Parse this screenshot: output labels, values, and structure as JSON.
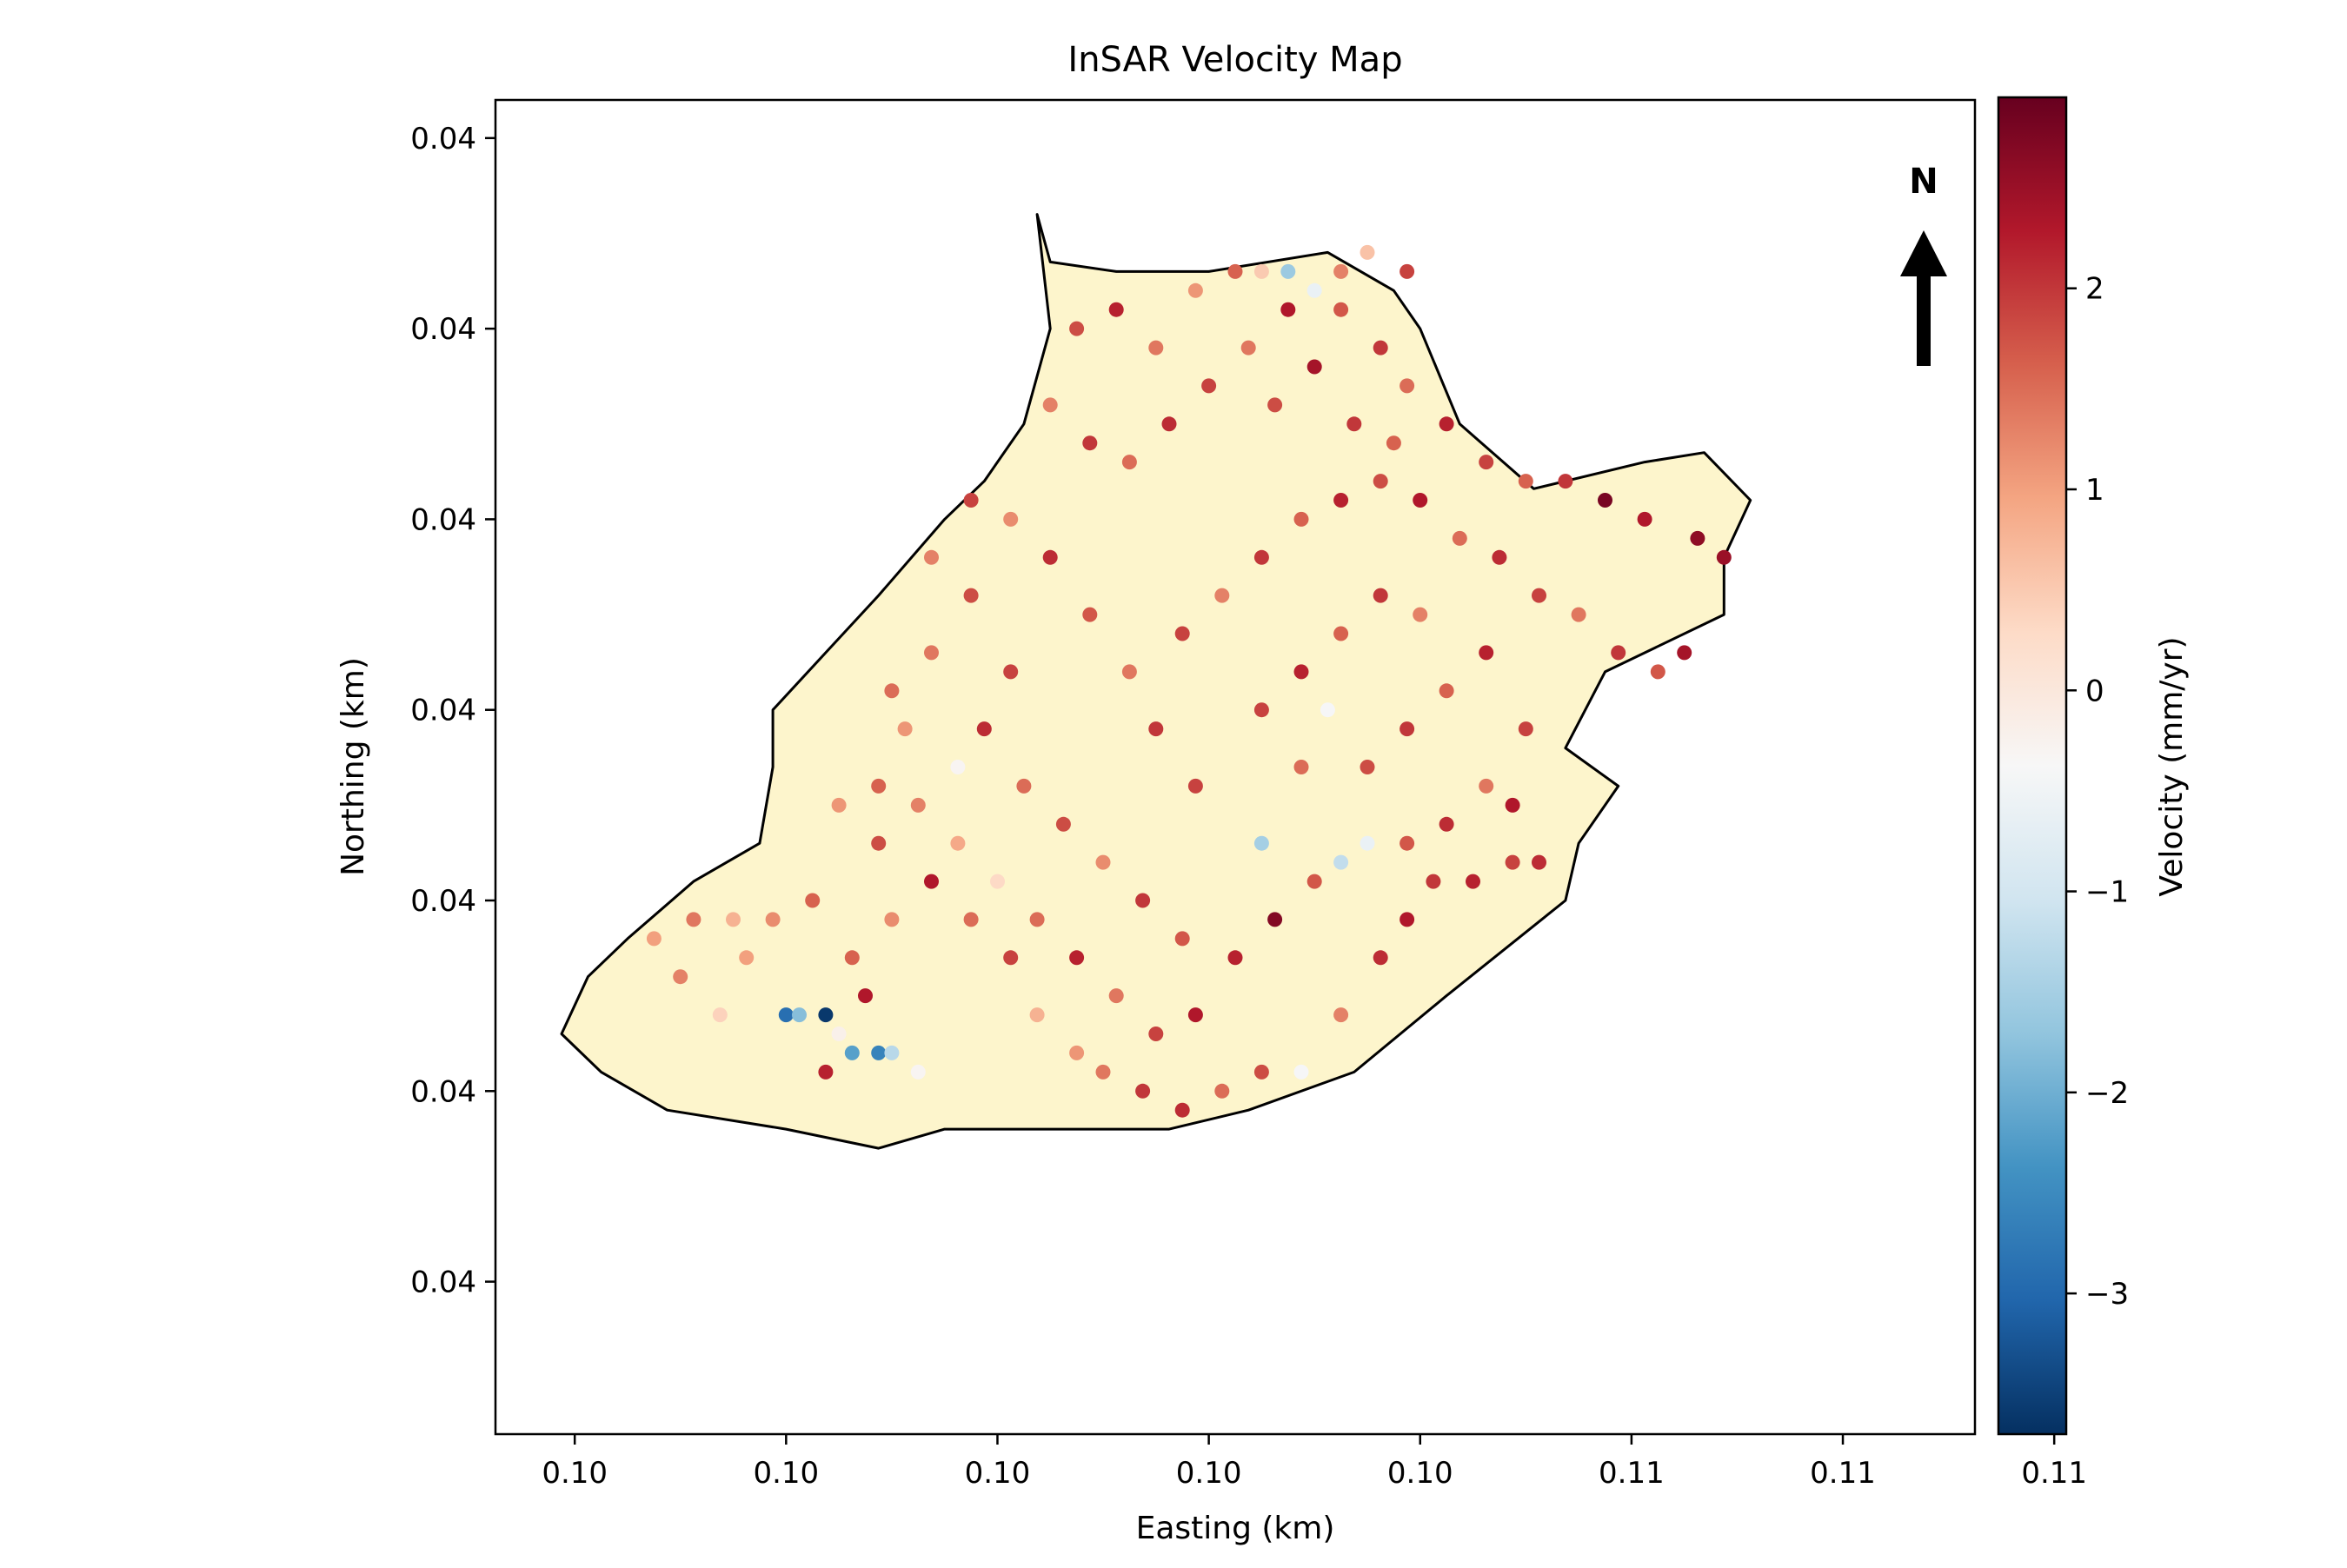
{
  "chart_data": {
    "type": "scatter",
    "title": "InSAR Velocity Map",
    "xlabel": "Easting (km)",
    "ylabel": "Northing (km)",
    "xlim": [
      0.0994,
      0.1106
    ],
    "ylim": [
      0.0352,
      0.0422
    ],
    "x_tick_values": [
      0.1,
      0.1016,
      0.1032,
      0.1048,
      0.1064,
      0.108,
      0.1096,
      0.1112
    ],
    "x_tick_labels": [
      "0.10",
      "0.10",
      "0.10",
      "0.10",
      "0.10",
      "0.11",
      "0.11",
      "0.11"
    ],
    "y_tick_values": [
      0.042,
      0.041,
      0.04,
      0.039,
      0.038,
      0.037,
      0.036
    ],
    "y_tick_labels": [
      "0.04",
      "0.04",
      "0.04",
      "0.04",
      "0.04",
      "0.04",
      "0.04"
    ],
    "grid": false,
    "legend": "none",
    "colorbar": {
      "label": "Velocity (mm/yr)",
      "cmap": "RdBu_r",
      "range": [
        -3.7,
        2.95
      ],
      "tick_values": [
        2,
        1,
        0,
        -1,
        -2,
        -3
      ],
      "tick_labels": [
        "2",
        "1",
        "0",
        "−1",
        "−2",
        "−3"
      ]
    },
    "north_arrow": {
      "label": "N",
      "placement": "top-right"
    },
    "basin_fill_color": "#fdf5cc",
    "basin_outline": [
      [
        0.1035,
        0.0416
      ],
      [
        0.1036,
        0.04135
      ],
      [
        0.1041,
        0.0413
      ],
      [
        0.1048,
        0.0413
      ],
      [
        0.1057,
        0.0414
      ],
      [
        0.1062,
        0.0412
      ],
      [
        0.1064,
        0.041
      ],
      [
        0.1067,
        0.0405
      ],
      [
        0.10726,
        0.04016
      ],
      [
        0.1081,
        0.0403
      ],
      [
        0.10855,
        0.04035
      ],
      [
        0.1089,
        0.0401
      ],
      [
        0.1087,
        0.0398
      ],
      [
        0.1087,
        0.0395
      ],
      [
        0.1078,
        0.0392
      ],
      [
        0.1075,
        0.0388
      ],
      [
        0.1079,
        0.0386
      ],
      [
        0.1076,
        0.0383
      ],
      [
        0.1075,
        0.038
      ],
      [
        0.1066,
        0.0375
      ],
      [
        0.1059,
        0.0371
      ],
      [
        0.1051,
        0.0369
      ],
      [
        0.1045,
        0.0368
      ],
      [
        0.1036,
        0.0368
      ],
      [
        0.1028,
        0.0368
      ],
      [
        0.1023,
        0.0367
      ],
      [
        0.1016,
        0.0368
      ],
      [
        0.1007,
        0.0369
      ],
      [
        0.1002,
        0.0371
      ],
      [
        0.0999,
        0.0373
      ],
      [
        0.1001,
        0.0376
      ],
      [
        0.1004,
        0.0378
      ],
      [
        0.1009,
        0.0381
      ],
      [
        0.1014,
        0.0383
      ],
      [
        0.1015,
        0.0387
      ],
      [
        0.1015,
        0.039
      ],
      [
        0.1019,
        0.0393
      ],
      [
        0.1023,
        0.0396
      ],
      [
        0.1028,
        0.04
      ],
      [
        0.1031,
        0.0402
      ],
      [
        0.1034,
        0.0405
      ],
      [
        0.1036,
        0.041
      ],
      [
        0.1035,
        0.0416
      ]
    ],
    "points": [
      {
        "x": 0.1008,
        "y": 0.0376,
        "v": 1.3
      },
      {
        "x": 0.1011,
        "y": 0.0374,
        "v": 0.4
      },
      {
        "x": 0.1013,
        "y": 0.0377,
        "v": 1.0
      },
      {
        "x": 0.1016,
        "y": 0.0374,
        "v": -2.9
      },
      {
        "x": 0.1017,
        "y": 0.0374,
        "v": -1.8
      },
      {
        "x": 0.1019,
        "y": 0.0374,
        "v": -3.6
      },
      {
        "x": 0.102,
        "y": 0.0373,
        "v": -0.2
      },
      {
        "x": 0.1021,
        "y": 0.0372,
        "v": -2.2
      },
      {
        "x": 0.1023,
        "y": 0.0372,
        "v": -2.6
      },
      {
        "x": 0.1024,
        "y": 0.0372,
        "v": -1.3
      },
      {
        "x": 0.1026,
        "y": 0.0371,
        "v": -0.3
      },
      {
        "x": 0.1019,
        "y": 0.0371,
        "v": 2.2
      },
      {
        "x": 0.1022,
        "y": 0.0375,
        "v": 2.3
      },
      {
        "x": 0.1021,
        "y": 0.0377,
        "v": 1.6
      },
      {
        "x": 0.1024,
        "y": 0.0379,
        "v": 1.2
      },
      {
        "x": 0.1027,
        "y": 0.0381,
        "v": 2.3
      },
      {
        "x": 0.103,
        "y": 0.0379,
        "v": 1.5
      },
      {
        "x": 0.1033,
        "y": 0.0377,
        "v": 1.9
      },
      {
        "x": 0.1035,
        "y": 0.0374,
        "v": 0.8
      },
      {
        "x": 0.1038,
        "y": 0.0372,
        "v": 1.1
      },
      {
        "x": 0.104,
        "y": 0.0371,
        "v": 1.4
      },
      {
        "x": 0.1043,
        "y": 0.037,
        "v": 2.0
      },
      {
        "x": 0.1046,
        "y": 0.0369,
        "v": 2.1
      },
      {
        "x": 0.1049,
        "y": 0.037,
        "v": 1.5
      },
      {
        "x": 0.1052,
        "y": 0.0371,
        "v": 1.8
      },
      {
        "x": 0.1055,
        "y": 0.0371,
        "v": -0.4
      },
      {
        "x": 0.1058,
        "y": 0.0374,
        "v": 1.3
      },
      {
        "x": 0.1061,
        "y": 0.0377,
        "v": 2.1
      },
      {
        "x": 0.1063,
        "y": 0.0379,
        "v": 2.3
      },
      {
        "x": 0.1065,
        "y": 0.0381,
        "v": 2.0
      },
      {
        "x": 0.1068,
        "y": 0.0381,
        "v": 2.2
      },
      {
        "x": 0.1071,
        "y": 0.0382,
        "v": 1.9
      },
      {
        "x": 0.1073,
        "y": 0.0382,
        "v": 2.1
      },
      {
        "x": 0.105,
        "y": 0.0377,
        "v": 2.2
      },
      {
        "x": 0.1053,
        "y": 0.0379,
        "v": 2.7
      },
      {
        "x": 0.1056,
        "y": 0.0381,
        "v": 1.7
      },
      {
        "x": 0.1058,
        "y": 0.0382,
        "v": -1.2
      },
      {
        "x": 0.106,
        "y": 0.0383,
        "v": -0.6
      },
      {
        "x": 0.1052,
        "y": 0.0383,
        "v": -1.5
      },
      {
        "x": 0.1047,
        "y": 0.0386,
        "v": 1.9
      },
      {
        "x": 0.1044,
        "y": 0.0389,
        "v": 2.0
      },
      {
        "x": 0.1042,
        "y": 0.0392,
        "v": 1.4
      },
      {
        "x": 0.1039,
        "y": 0.0395,
        "v": 1.7
      },
      {
        "x": 0.1036,
        "y": 0.0398,
        "v": 2.1
      },
      {
        "x": 0.1033,
        "y": 0.04,
        "v": 1.2
      },
      {
        "x": 0.103,
        "y": 0.0396,
        "v": 1.8
      },
      {
        "x": 0.1027,
        "y": 0.0393,
        "v": 1.4
      },
      {
        "x": 0.1025,
        "y": 0.0389,
        "v": 1.1
      },
      {
        "x": 0.1023,
        "y": 0.0386,
        "v": 1.6
      },
      {
        "x": 0.1046,
        "y": 0.0394,
        "v": 1.9
      },
      {
        "x": 0.1049,
        "y": 0.0396,
        "v": 1.3
      },
      {
        "x": 0.1052,
        "y": 0.0398,
        "v": 2.0
      },
      {
        "x": 0.1055,
        "y": 0.04,
        "v": 1.6
      },
      {
        "x": 0.1058,
        "y": 0.0401,
        "v": 2.2
      },
      {
        "x": 0.1061,
        "y": 0.0402,
        "v": 1.8
      },
      {
        "x": 0.1064,
        "y": 0.0401,
        "v": 2.3
      },
      {
        "x": 0.1067,
        "y": 0.0399,
        "v": 1.5
      },
      {
        "x": 0.107,
        "y": 0.0398,
        "v": 2.1
      },
      {
        "x": 0.1073,
        "y": 0.0396,
        "v": 1.9
      },
      {
        "x": 0.1076,
        "y": 0.0395,
        "v": 1.4
      },
      {
        "x": 0.1079,
        "y": 0.0393,
        "v": 2.0
      },
      {
        "x": 0.1082,
        "y": 0.0392,
        "v": 1.7
      },
      {
        "x": 0.1084,
        "y": 0.0393,
        "v": 2.4
      },
      {
        "x": 0.1087,
        "y": 0.0398,
        "v": 2.5
      },
      {
        "x": 0.1085,
        "y": 0.0399,
        "v": 2.6
      },
      {
        "x": 0.1081,
        "y": 0.04,
        "v": 2.3
      },
      {
        "x": 0.1078,
        "y": 0.0401,
        "v": 2.8
      },
      {
        "x": 0.1075,
        "y": 0.0402,
        "v": 2.0
      },
      {
        "x": 0.1072,
        "y": 0.0402,
        "v": 1.6
      },
      {
        "x": 0.1069,
        "y": 0.0403,
        "v": 1.9
      },
      {
        "x": 0.1066,
        "y": 0.0405,
        "v": 2.2
      },
      {
        "x": 0.1063,
        "y": 0.0407,
        "v": 1.5
      },
      {
        "x": 0.1061,
        "y": 0.0409,
        "v": 2.0
      },
      {
        "x": 0.1058,
        "y": 0.0411,
        "v": 1.7
      },
      {
        "x": 0.1054,
        "y": 0.0411,
        "v": 2.3
      },
      {
        "x": 0.1051,
        "y": 0.0409,
        "v": 1.4
      },
      {
        "x": 0.1048,
        "y": 0.0407,
        "v": 1.9
      },
      {
        "x": 0.1045,
        "y": 0.0405,
        "v": 2.1
      },
      {
        "x": 0.1042,
        "y": 0.0403,
        "v": 1.5
      },
      {
        "x": 0.1039,
        "y": 0.0404,
        "v": 2.0
      },
      {
        "x": 0.1036,
        "y": 0.0406,
        "v": 1.3
      },
      {
        "x": 0.1038,
        "y": 0.041,
        "v": 1.8
      },
      {
        "x": 0.1041,
        "y": 0.0411,
        "v": 2.2
      },
      {
        "x": 0.1044,
        "y": 0.0409,
        "v": 1.4
      },
      {
        "x": 0.1047,
        "y": 0.0412,
        "v": 1.1
      },
      {
        "x": 0.105,
        "y": 0.0413,
        "v": 1.6
      },
      {
        "x": 0.1052,
        "y": 0.0413,
        "v": 0.5
      },
      {
        "x": 0.1054,
        "y": 0.0413,
        "v": -1.6
      },
      {
        "x": 0.1056,
        "y": 0.0412,
        "v": -0.6
      },
      {
        "x": 0.1058,
        "y": 0.0413,
        "v": 1.3
      },
      {
        "x": 0.106,
        "y": 0.0414,
        "v": 0.6
      },
      {
        "x": 0.1063,
        "y": 0.0413,
        "v": 1.9
      },
      {
        "x": 0.1056,
        "y": 0.0408,
        "v": 2.4
      },
      {
        "x": 0.1053,
        "y": 0.0406,
        "v": 1.8
      },
      {
        "x": 0.1059,
        "y": 0.0405,
        "v": 2.0
      },
      {
        "x": 0.1062,
        "y": 0.0404,
        "v": 1.6
      },
      {
        "x": 0.1033,
        "y": 0.0392,
        "v": 1.9
      },
      {
        "x": 0.1031,
        "y": 0.0389,
        "v": 2.1
      },
      {
        "x": 0.1034,
        "y": 0.0386,
        "v": 1.5
      },
      {
        "x": 0.1037,
        "y": 0.0384,
        "v": 1.8
      },
      {
        "x": 0.104,
        "y": 0.0382,
        "v": 1.2
      },
      {
        "x": 0.1043,
        "y": 0.038,
        "v": 2.0
      },
      {
        "x": 0.1046,
        "y": 0.0378,
        "v": 1.7
      },
      {
        "x": 0.1026,
        "y": 0.0385,
        "v": 1.3
      },
      {
        "x": 0.1029,
        "y": 0.0383,
        "v": 0.9
      },
      {
        "x": 0.1032,
        "y": 0.0381,
        "v": 0.3
      },
      {
        "x": 0.1035,
        "y": 0.0379,
        "v": 1.5
      },
      {
        "x": 0.1038,
        "y": 0.0377,
        "v": 2.2
      },
      {
        "x": 0.1041,
        "y": 0.0375,
        "v": 1.4
      },
      {
        "x": 0.1044,
        "y": 0.0373,
        "v": 1.9
      },
      {
        "x": 0.1047,
        "y": 0.0374,
        "v": 2.3
      },
      {
        "x": 0.106,
        "y": 0.0387,
        "v": 1.8
      },
      {
        "x": 0.1063,
        "y": 0.0389,
        "v": 2.0
      },
      {
        "x": 0.1066,
        "y": 0.0391,
        "v": 1.6
      },
      {
        "x": 0.1069,
        "y": 0.0393,
        "v": 2.2
      },
      {
        "x": 0.1072,
        "y": 0.0389,
        "v": 1.9
      },
      {
        "x": 0.1069,
        "y": 0.0386,
        "v": 1.4
      },
      {
        "x": 0.1066,
        "y": 0.0384,
        "v": 2.1
      },
      {
        "x": 0.1063,
        "y": 0.0383,
        "v": 1.7
      },
      {
        "x": 0.1071,
        "y": 0.0385,
        "v": 2.3
      },
      {
        "x": 0.1055,
        "y": 0.0387,
        "v": 1.5
      },
      {
        "x": 0.1052,
        "y": 0.039,
        "v": 1.9
      },
      {
        "x": 0.1055,
        "y": 0.0392,
        "v": 2.2
      },
      {
        "x": 0.1058,
        "y": 0.0394,
        "v": 1.6
      },
      {
        "x": 0.1061,
        "y": 0.0396,
        "v": 2.0
      },
      {
        "x": 0.1064,
        "y": 0.0395,
        "v": 1.3
      },
      {
        "x": 0.1018,
        "y": 0.038,
        "v": 1.6
      },
      {
        "x": 0.1015,
        "y": 0.0379,
        "v": 1.2
      },
      {
        "x": 0.1012,
        "y": 0.0379,
        "v": 0.8
      },
      {
        "x": 0.1009,
        "y": 0.0379,
        "v": 1.4
      },
      {
        "x": 0.1006,
        "y": 0.0378,
        "v": 1.0
      },
      {
        "x": 0.1023,
        "y": 0.0383,
        "v": 1.8
      },
      {
        "x": 0.102,
        "y": 0.0385,
        "v": 1.1
      },
      {
        "x": 0.1024,
        "y": 0.0391,
        "v": 1.5
      },
      {
        "x": 0.1027,
        "y": 0.0398,
        "v": 1.3
      },
      {
        "x": 0.103,
        "y": 0.0401,
        "v": 1.9
      },
      {
        "x": 0.1029,
        "y": 0.0387,
        "v": -0.3
      },
      {
        "x": 0.1057,
        "y": 0.039,
        "v": -0.4
      }
    ]
  }
}
